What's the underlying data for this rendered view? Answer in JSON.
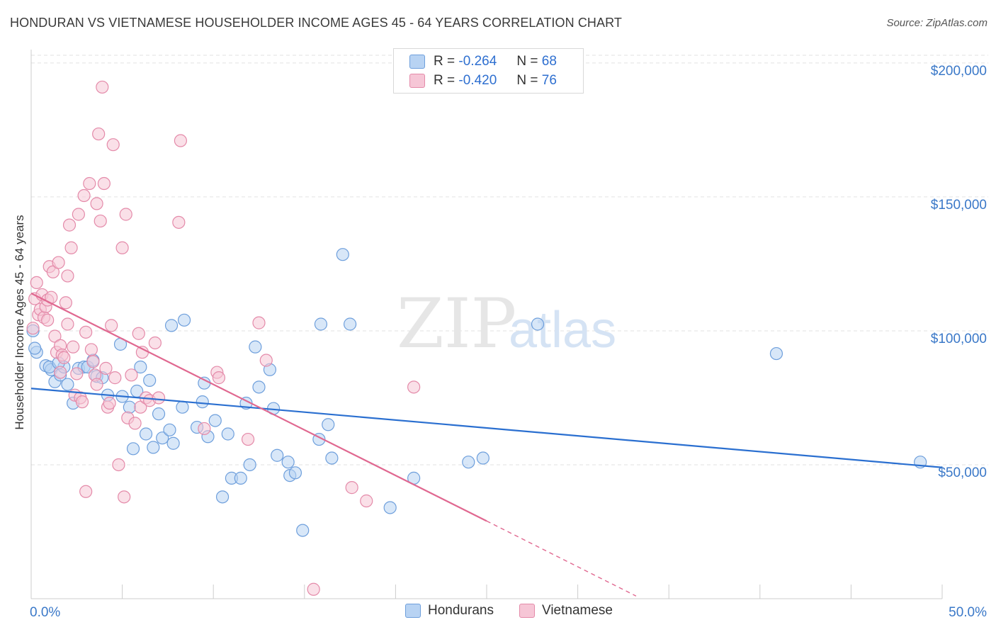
{
  "title": "HONDURAN VS VIETNAMESE HOUSEHOLDER INCOME AGES 45 - 64 YEARS CORRELATION CHART",
  "source": "Source: ZipAtlas.com",
  "watermark": {
    "zip": "ZIP",
    "atlas": "atlas"
  },
  "colors": {
    "hondurans_fill": "#b8d3f3",
    "hondurans_stroke": "#6e9fdc",
    "hondurans_line": "#2a6fd0",
    "vietnamese_fill": "#f6c6d6",
    "vietnamese_stroke": "#e48aa9",
    "vietnamese_line": "#e06890",
    "tick_text": "#3a78c8",
    "grid": "#e2e2e2"
  },
  "legend": {
    "r_label": "R =",
    "n_label": "N =",
    "hondurans": {
      "r": "-0.264",
      "n": "68"
    },
    "vietnamese": {
      "r": "-0.420",
      "n": "76"
    }
  },
  "chart_data": {
    "type": "scatter",
    "title": "HONDURAN VS VIETNAMESE HOUSEHOLDER INCOME AGES 45 - 64 YEARS CORRELATION CHART",
    "xlabel": "",
    "ylabel": "Householder Income Ages 45 - 64 years",
    "xlim": [
      0,
      50
    ],
    "ylim": [
      0,
      205000
    ],
    "x_tick_labels": [
      "0.0%",
      "50.0%"
    ],
    "y_ticks": [
      50000,
      100000,
      150000,
      200000
    ],
    "y_tick_labels": [
      "$50,000",
      "$100,000",
      "$150,000",
      "$200,000"
    ],
    "grid": true,
    "legend_position": "top-center",
    "series": [
      {
        "name": "Hondurans",
        "r": -0.264,
        "n": 68,
        "trend": {
          "x": [
            0,
            50
          ],
          "y": [
            78500,
            49000
          ],
          "dashed_from": null
        },
        "points": [
          [
            0.1,
            100000
          ],
          [
            0.3,
            92000
          ],
          [
            0.8,
            87000
          ],
          [
            1.1,
            85500
          ],
          [
            1.3,
            81000
          ],
          [
            1.6,
            83500
          ],
          [
            1.8,
            86500
          ],
          [
            2.0,
            80000
          ],
          [
            2.3,
            73000
          ],
          [
            1.0,
            86500
          ],
          [
            2.6,
            86000
          ],
          [
            2.9,
            86500
          ],
          [
            3.1,
            86500
          ],
          [
            3.4,
            89000
          ],
          [
            3.6,
            83000
          ],
          [
            3.9,
            82500
          ],
          [
            4.2,
            76000
          ],
          [
            4.9,
            95000
          ],
          [
            5.0,
            75500
          ],
          [
            5.4,
            71500
          ],
          [
            5.6,
            56000
          ],
          [
            5.8,
            77500
          ],
          [
            6.0,
            86500
          ],
          [
            6.3,
            61500
          ],
          [
            6.5,
            81500
          ],
          [
            6.7,
            56500
          ],
          [
            7.0,
            69000
          ],
          [
            7.2,
            60000
          ],
          [
            7.6,
            63000
          ],
          [
            7.8,
            58000
          ],
          [
            7.7,
            102000
          ],
          [
            8.3,
            71500
          ],
          [
            8.4,
            104000
          ],
          [
            9.1,
            64000
          ],
          [
            9.4,
            73500
          ],
          [
            9.5,
            80500
          ],
          [
            9.7,
            60500
          ],
          [
            10.1,
            66500
          ],
          [
            10.5,
            38000
          ],
          [
            10.8,
            61500
          ],
          [
            11.0,
            45000
          ],
          [
            11.5,
            45000
          ],
          [
            11.8,
            73000
          ],
          [
            12.0,
            50000
          ],
          [
            12.3,
            94000
          ],
          [
            12.5,
            79000
          ],
          [
            13.1,
            85500
          ],
          [
            13.3,
            71000
          ],
          [
            13.5,
            53500
          ],
          [
            14.1,
            51000
          ],
          [
            14.2,
            46000
          ],
          [
            14.5,
            47000
          ],
          [
            14.9,
            25500
          ],
          [
            15.8,
            59500
          ],
          [
            15.9,
            102500
          ],
          [
            16.3,
            65000
          ],
          [
            16.5,
            52500
          ],
          [
            17.1,
            128500
          ],
          [
            17.5,
            102500
          ],
          [
            19.7,
            34000
          ],
          [
            21.0,
            45000
          ],
          [
            24.0,
            51000
          ],
          [
            24.8,
            52500
          ],
          [
            27.8,
            102500
          ],
          [
            40.9,
            91500
          ],
          [
            48.8,
            51000
          ],
          [
            0.2,
            93500
          ],
          [
            1.5,
            88000
          ]
        ]
      },
      {
        "name": "Vietnamese",
        "r": -0.42,
        "n": 76,
        "trend": {
          "x": [
            0,
            25
          ],
          "y": [
            114000,
            29000
          ],
          "dashed_to": {
            "x": 33.2,
            "y": 1000
          }
        },
        "points": [
          [
            0.1,
            101000
          ],
          [
            0.2,
            112000
          ],
          [
            0.3,
            118000
          ],
          [
            0.4,
            106000
          ],
          [
            0.5,
            108000
          ],
          [
            0.6,
            113500
          ],
          [
            0.7,
            105000
          ],
          [
            0.8,
            109000
          ],
          [
            0.9,
            111500
          ],
          [
            1.0,
            124000
          ],
          [
            1.1,
            112500
          ],
          [
            1.2,
            122000
          ],
          [
            1.3,
            98000
          ],
          [
            1.4,
            92000
          ],
          [
            1.5,
            125500
          ],
          [
            1.6,
            94500
          ],
          [
            1.7,
            91000
          ],
          [
            1.8,
            90000
          ],
          [
            1.9,
            110500
          ],
          [
            2.0,
            102500
          ],
          [
            2.0,
            120500
          ],
          [
            2.1,
            139500
          ],
          [
            2.2,
            131000
          ],
          [
            2.3,
            94000
          ],
          [
            2.4,
            76000
          ],
          [
            2.5,
            84000
          ],
          [
            2.6,
            143500
          ],
          [
            2.7,
            75000
          ],
          [
            2.8,
            73500
          ],
          [
            2.9,
            150500
          ],
          [
            3.0,
            40000
          ],
          [
            3.0,
            99500
          ],
          [
            3.2,
            155000
          ],
          [
            3.3,
            93000
          ],
          [
            3.4,
            88500
          ],
          [
            3.5,
            83500
          ],
          [
            3.6,
            80000
          ],
          [
            3.6,
            147500
          ],
          [
            3.7,
            173500
          ],
          [
            3.8,
            141000
          ],
          [
            3.9,
            191000
          ],
          [
            4.0,
            155000
          ],
          [
            4.1,
            86000
          ],
          [
            4.2,
            71500
          ],
          [
            4.3,
            73000
          ],
          [
            4.4,
            102000
          ],
          [
            4.5,
            169500
          ],
          [
            4.6,
            82500
          ],
          [
            4.8,
            50000
          ],
          [
            5.0,
            131000
          ],
          [
            5.1,
            38000
          ],
          [
            5.2,
            143500
          ],
          [
            5.3,
            67500
          ],
          [
            5.5,
            83500
          ],
          [
            5.7,
            65500
          ],
          [
            5.9,
            99000
          ],
          [
            6.0,
            71500
          ],
          [
            6.1,
            92000
          ],
          [
            6.3,
            75000
          ],
          [
            6.5,
            74000
          ],
          [
            6.8,
            95500
          ],
          [
            7.0,
            75000
          ],
          [
            8.1,
            140500
          ],
          [
            8.2,
            171000
          ],
          [
            9.5,
            63500
          ],
          [
            10.2,
            84500
          ],
          [
            10.3,
            82500
          ],
          [
            11.9,
            59500
          ],
          [
            12.5,
            103000
          ],
          [
            12.9,
            89000
          ],
          [
            15.5,
            3500
          ],
          [
            17.6,
            41500
          ],
          [
            18.4,
            36500
          ],
          [
            21.0,
            79000
          ],
          [
            1.6,
            84500
          ],
          [
            0.9,
            104000
          ]
        ]
      }
    ]
  },
  "bottom_legend": {
    "hondurans": "Hondurans",
    "vietnamese": "Vietnamese"
  }
}
